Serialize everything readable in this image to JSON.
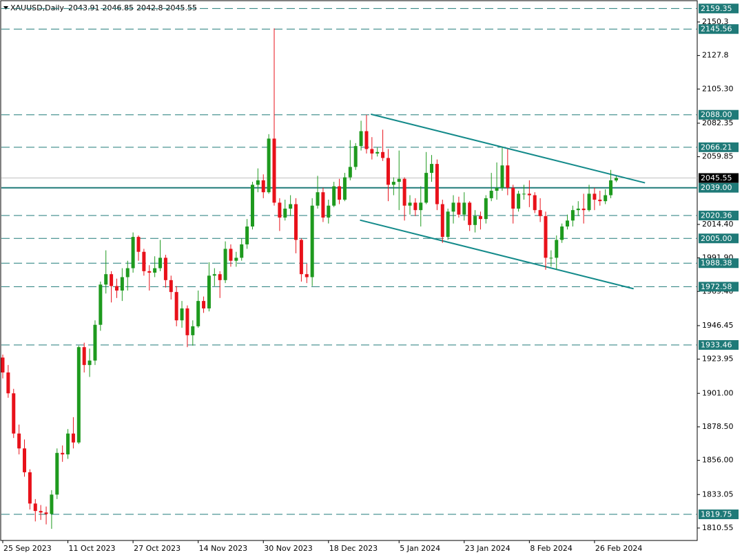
{
  "chart_data": {
    "type": "candlestick",
    "title": "XAUUSD,Daily",
    "categories": [
      "25 Sep 2023",
      null,
      null,
      null,
      null,
      null,
      null,
      null,
      null,
      null,
      null,
      null,
      "11 Oct 2023",
      null,
      null,
      null,
      null,
      null,
      null,
      null,
      null,
      null,
      null,
      null,
      "27 Oct 2023",
      null,
      null,
      null,
      null,
      null,
      null,
      null,
      null,
      null,
      null,
      null,
      "14 Nov 2023",
      null,
      null,
      null,
      null,
      null,
      null,
      null,
      null,
      null,
      null,
      null,
      "30 Nov 2023",
      null,
      null,
      null,
      null,
      null,
      null,
      null,
      null,
      null,
      null,
      null,
      "18 Dec 2023",
      null,
      null,
      null,
      null,
      null,
      null,
      null,
      null,
      null,
      null,
      null,
      null,
      "5 Jan 2024",
      null,
      null,
      null,
      null,
      null,
      null,
      null,
      null,
      null,
      null,
      null,
      "23 Jan 2024",
      null,
      null,
      null,
      null,
      null,
      null,
      null,
      null,
      null,
      null,
      null,
      "8 Feb 2024",
      null,
      null,
      null,
      null,
      null,
      null,
      null,
      null,
      null,
      null,
      null,
      "26 Feb 2024",
      null,
      null,
      null,
      null
    ],
    "open": [
      1925,
      1915,
      1901,
      1874,
      1864,
      1848,
      1827,
      1822,
      1821,
      1820,
      1833,
      1861,
      1860,
      1874,
      1868,
      1932,
      1920,
      1923,
      1947,
      1974,
      1981,
      1973,
      1970,
      1979,
      1985,
      2006,
      1996,
      1983,
      1982,
      1985,
      1992,
      1977,
      1969,
      1950,
      1958,
      1940,
      1946,
      1963,
      1958,
      1980,
      1981,
      1977,
      1998,
      1990,
      1992,
      2001,
      2013,
      2041,
      2044,
      2036,
      2072,
      2029,
      2019,
      2025,
      2028,
      2004,
      1981,
      1979,
      2027,
      2036,
      2019,
      2027,
      2040,
      2031,
      2046,
      2053,
      2067,
      2077,
      2065,
      2062,
      2063,
      2059,
      2041,
      2043,
      2045,
      2027,
      2029,
      2024,
      2029,
      2049,
      2055,
      2028,
      2006,
      2023,
      2029,
      2021,
      2029,
      2014,
      2020,
      2018,
      2032,
      2037,
      2039,
      2054,
      2039,
      2025,
      2035,
      2035,
      2034,
      2024,
      2020,
      1992,
      1992,
      2004,
      2013,
      2017,
      2024,
      2025,
      2024,
      2035,
      2031,
      2030,
      2034,
      2043.91
    ],
    "high": [
      1927,
      1920,
      1904,
      1880,
      1870,
      1850,
      1830,
      1826,
      1825,
      1836,
      1864,
      1866,
      1877,
      1885,
      1933,
      1935,
      1931,
      1950,
      1976,
      1997,
      1983,
      1978,
      1985,
      1990,
      2009,
      2007,
      1998,
      1987,
      1993,
      2004,
      1994,
      1980,
      1973,
      1963,
      1960,
      1950,
      1970,
      1966,
      1989,
      1985,
      1983,
      2003,
      2001,
      1996,
      2005,
      2018,
      2043,
      2052,
      2048,
      2075,
      2146,
      2032,
      2031,
      2034,
      2032,
      2005,
      1988,
      2032,
      2047,
      2039,
      2031,
      2043,
      2045,
      2049,
      2071,
      2069,
      2084,
      2088,
      2073,
      2066,
      2078,
      2065,
      2046,
      2064,
      2046,
      2034,
      2032,
      2040,
      2063,
      2061,
      2058,
      2031,
      2025,
      2034,
      2033,
      2036,
      2030,
      2024,
      2023,
      2034,
      2049,
      2056,
      2066,
      2065,
      2041,
      2037,
      2041,
      2044,
      2036,
      2032,
      2023,
      1997,
      2007,
      2015,
      2021,
      2027,
      2030,
      2035,
      2041,
      2039,
      2037,
      2038,
      2051,
      2046.85
    ],
    "low": [
      1911,
      1898,
      1871,
      1860,
      1845,
      1823,
      1815,
      1816,
      1813,
      1810,
      1830,
      1855,
      1857,
      1864,
      1867,
      1915,
      1912,
      1920,
      1943,
      1968,
      1962,
      1965,
      1963,
      1970,
      1982,
      1990,
      1980,
      1970,
      1979,
      1983,
      1972,
      1964,
      1946,
      1945,
      1932,
      1933,
      1945,
      1955,
      1956,
      1973,
      1965,
      1975,
      1986,
      1986,
      1990,
      1998,
      2011,
      2036,
      2032,
      2035,
      2027,
      2010,
      2017,
      2020,
      1995,
      1976,
      1975,
      1973,
      2025,
      2016,
      2015,
      2026,
      2028,
      2030,
      2044,
      2051,
      2064,
      2062,
      2058,
      2060,
      2057,
      2030,
      2034,
      2024,
      2017,
      2021,
      2020,
      2013,
      2028,
      2043,
      2024,
      2002,
      2004,
      2015,
      2019,
      2017,
      2010,
      2009,
      2011,
      2015,
      2030,
      2031,
      2037,
      2034,
      2015,
      2023,
      2031,
      2026,
      2022,
      2016,
      1984,
      1986,
      1984,
      2002,
      2011,
      2013,
      2020,
      2015,
      2023,
      2024,
      2027,
      2028,
      2032,
      2042.8
    ],
    "close": [
      1915,
      1901,
      1874,
      1864,
      1848,
      1827,
      1822,
      1821,
      1820,
      1833,
      1861,
      1860,
      1874,
      1868,
      1932,
      1920,
      1923,
      1947,
      1974,
      1981,
      1973,
      1970,
      1979,
      1985,
      2006,
      1996,
      1983,
      1982,
      1985,
      1992,
      1977,
      1969,
      1950,
      1958,
      1940,
      1946,
      1963,
      1958,
      1980,
      1981,
      1977,
      1998,
      1990,
      1992,
      2001,
      2013,
      2041,
      2044,
      2036,
      2072,
      2029,
      2019,
      2025,
      2028,
      2004,
      1981,
      1979,
      2027,
      2036,
      2019,
      2027,
      2040,
      2031,
      2046,
      2053,
      2067,
      2077,
      2065,
      2062,
      2063,
      2059,
      2041,
      2043,
      2045,
      2027,
      2029,
      2024,
      2029,
      2049,
      2055,
      2028,
      2006,
      2023,
      2029,
      2021,
      2029,
      2014,
      2020,
      2018,
      2032,
      2037,
      2039,
      2054,
      2039,
      2025,
      2035,
      2035,
      2034,
      2024,
      2020,
      1992,
      1992,
      2004,
      2013,
      2017,
      2024,
      2025,
      2024,
      2035,
      2031,
      2030,
      2034,
      2044,
      2045.55
    ],
    "up_color": "#1e9a1e",
    "down_color": "#e8111a",
    "ylim": [
      1802.2,
      2164.6
    ],
    "yticks": [
      2150.3,
      2127.8,
      {
        "value": 2105.3,
        "label": "2105.30"
      },
      2082.35,
      2059.85,
      {
        "value": 2014.4,
        "label": "2014.40"
      },
      {
        "value": 1991.9,
        "label": "1991.90"
      },
      {
        "value": 1969.4,
        "label": "1969.40"
      },
      1946.45,
      1923.95,
      {
        "value": 1901,
        "label": "1901.00"
      },
      {
        "value": 1878.5,
        "label": "1878.50"
      },
      {
        "value": 1856,
        "label": "1856.00"
      },
      1833.05,
      1810.55
    ],
    "levels": [
      2159.35,
      2145.56,
      {
        "value": 2088,
        "label": "2088.00"
      },
      2066.21,
      2020.36,
      {
        "value": 2005,
        "label": "2005.00"
      },
      1988.38,
      1972.58,
      1933.46,
      1819.75
    ],
    "support": {
      "value": 2039,
      "label": "2039.00"
    },
    "level_color": "#1f7a78",
    "trendlines": [
      {
        "x": [
          67.8,
          118.3
        ],
        "y": [
          2088.4,
          2042.3
        ]
      },
      {
        "x": [
          65.8,
          116.2
        ],
        "y": [
          2017.3,
          1971.2
        ]
      }
    ]
  }
}
